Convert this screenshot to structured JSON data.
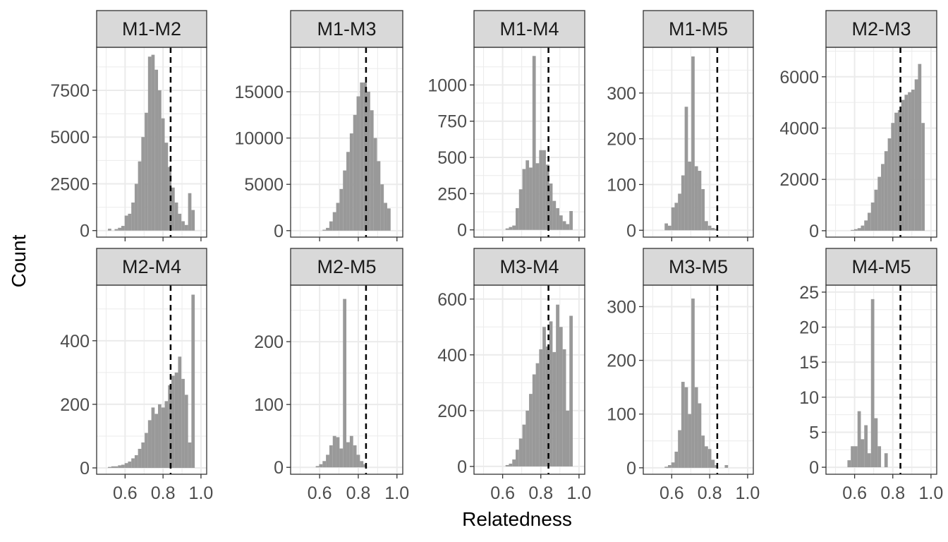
{
  "chart_data": {
    "type": "bar",
    "layout": "facet_grid",
    "xlabel": "Relatedness",
    "ylabel": "Count",
    "xlim": [
      0.45,
      1.03
    ],
    "xticks": [
      0.6,
      0.8,
      1.0
    ],
    "xtick_labels": [
      "0.6",
      "0.8",
      "1.0"
    ],
    "bin_width": 0.0176,
    "bin_start": 0.492,
    "reference_line": 0.84,
    "colors": {
      "bar": "#999999",
      "strip_fill": "#d9d9d9",
      "strip_border": "#333333",
      "grid": "#ebebeb",
      "reference_line": "#000000"
    },
    "panels": [
      {
        "label": "M1-M2",
        "ylim": [
          -350,
          9800
        ],
        "yticks": [
          0,
          2500,
          5000,
          7500
        ],
        "ytick_labels": [
          "0",
          "2500",
          "5000",
          "7500"
        ],
        "values": [
          0,
          100,
          0,
          80,
          150,
          250,
          800,
          900,
          1500,
          2500,
          3700,
          5000,
          6300,
          9300,
          9400,
          8600,
          7500,
          6000,
          4700,
          3400,
          2300,
          1500,
          900,
          500,
          300,
          2000,
          1100
        ]
      },
      {
        "label": "M1-M3",
        "ylim": [
          -700,
          19800
        ],
        "yticks": [
          0,
          5000,
          10000,
          15000
        ],
        "ytick_labels": [
          "0",
          "5000",
          "10000",
          "15000"
        ],
        "values": [
          0,
          0,
          0,
          0,
          0,
          0,
          0,
          100,
          300,
          1000,
          2000,
          3000,
          4500,
          6500,
          8500,
          10500,
          12500,
          14500,
          16000,
          16000,
          15000,
          13000,
          10000,
          7500,
          5000,
          3000,
          2400
        ]
      },
      {
        "label": "M1-M4",
        "ylim": [
          -50,
          1260
        ],
        "yticks": [
          0,
          250,
          500,
          750,
          1000
        ],
        "ytick_labels": [
          "0",
          "250",
          "500",
          "750",
          "1000"
        ],
        "values": [
          0,
          0,
          0,
          0,
          0,
          0,
          0,
          10,
          20,
          30,
          150,
          280,
          420,
          480,
          430,
          1200,
          460,
          550,
          550,
          450,
          320,
          200,
          150,
          100,
          60,
          40,
          130
        ]
      },
      {
        "label": "M1-M5",
        "ylim": [
          -15,
          400
        ],
        "yticks": [
          0,
          100,
          200,
          300
        ],
        "ytick_labels": [
          "0",
          "100",
          "200",
          "300"
        ],
        "values": [
          0,
          0,
          0,
          0,
          15,
          10,
          50,
          60,
          80,
          120,
          270,
          150,
          380,
          140,
          130,
          90,
          20,
          10,
          5,
          3,
          0,
          0,
          0,
          0,
          0,
          0,
          0
        ]
      },
      {
        "label": "M2-M3",
        "ylim": [
          -250,
          7150
        ],
        "yticks": [
          0,
          2000,
          4000,
          6000
        ],
        "ytick_labels": [
          "0",
          "2000",
          "4000",
          "6000"
        ],
        "values": [
          0,
          0,
          0,
          0,
          0,
          30,
          60,
          100,
          200,
          400,
          700,
          1100,
          1600,
          2100,
          2600,
          3100,
          3600,
          4200,
          4600,
          4700,
          5100,
          5300,
          5400,
          5500,
          5900,
          6500,
          4200
        ]
      },
      {
        "label": "M2-M4",
        "ylim": [
          -20,
          575
        ],
        "yticks": [
          0,
          200,
          400
        ],
        "ytick_labels": [
          "0",
          "200",
          "400"
        ],
        "values": [
          0,
          3,
          5,
          5,
          8,
          10,
          15,
          20,
          30,
          40,
          60,
          80,
          110,
          150,
          190,
          170,
          200,
          190,
          210,
          260,
          290,
          300,
          350,
          280,
          230,
          80,
          545
        ]
      },
      {
        "label": "M2-M5",
        "ylim": [
          -11,
          290
        ],
        "yticks": [
          0,
          100,
          200
        ],
        "ytick_labels": [
          "0",
          "100",
          "200"
        ],
        "values": [
          0,
          0,
          0,
          0,
          0,
          2,
          5,
          10,
          20,
          35,
          50,
          48,
          30,
          268,
          40,
          50,
          35,
          20,
          10,
          5,
          0,
          0,
          0,
          0,
          0,
          0,
          0
        ]
      },
      {
        "label": "M3-M4",
        "ylim": [
          -28,
          650
        ],
        "yticks": [
          0,
          200,
          400,
          600
        ],
        "ytick_labels": [
          "0",
          "200",
          "400",
          "600"
        ],
        "values": [
          0,
          0,
          0,
          0,
          0,
          0,
          0,
          5,
          10,
          25,
          60,
          100,
          150,
          200,
          260,
          330,
          370,
          420,
          500,
          430,
          520,
          410,
          580,
          500,
          420,
          200,
          540
        ]
      },
      {
        "label": "M3-M5",
        "ylim": [
          -12,
          340
        ],
        "yticks": [
          0,
          100,
          200,
          300
        ],
        "ytick_labels": [
          "0",
          "100",
          "200",
          "300"
        ],
        "values": [
          0,
          0,
          0,
          0,
          2,
          5,
          10,
          30,
          70,
          160,
          150,
          100,
          315,
          150,
          120,
          60,
          40,
          35,
          15,
          5,
          0,
          0,
          5,
          0,
          0,
          0,
          0
        ]
      },
      {
        "label": "M4-M5",
        "ylim": [
          -1,
          26
        ],
        "yticks": [
          0,
          5,
          10,
          15,
          20,
          25
        ],
        "ytick_labels": [
          "0",
          "5",
          "10",
          "15",
          "20",
          "25"
        ],
        "values": [
          0,
          0,
          0,
          0,
          1,
          3,
          3,
          8,
          4,
          6,
          2,
          24,
          7,
          3,
          0,
          2,
          0,
          0,
          0,
          0,
          0,
          0,
          0,
          0,
          0,
          0,
          0
        ]
      }
    ]
  }
}
